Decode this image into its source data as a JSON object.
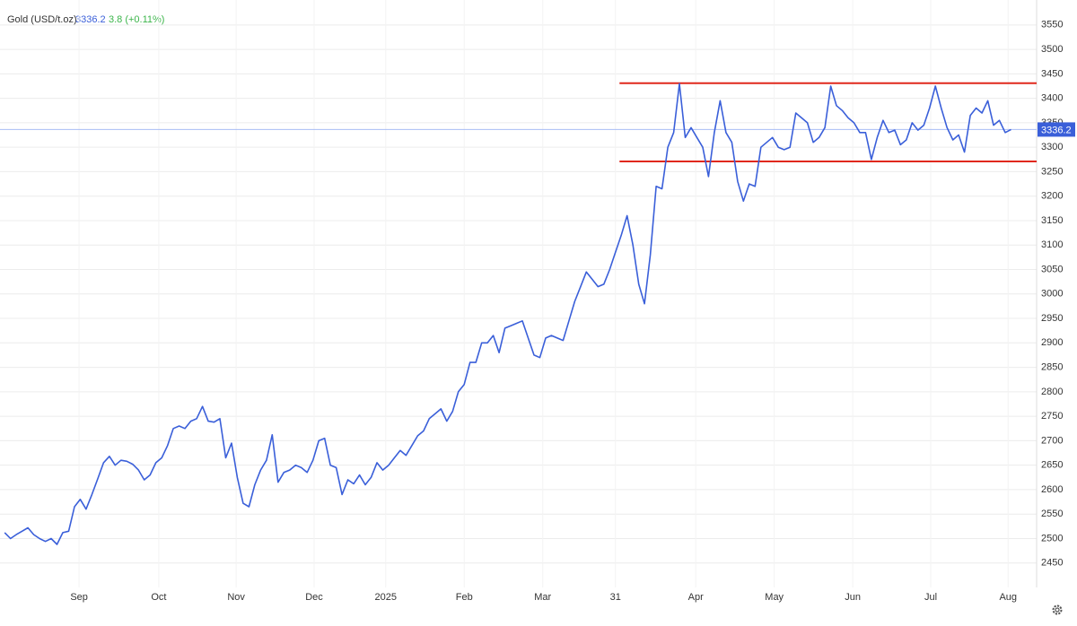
{
  "chart_data": {
    "type": "line",
    "title": "Gold (USD/t.oz)",
    "change": "3.8 (+0.11%)",
    "color": "#3a5fd9",
    "change_color": "#3bb54a",
    "level_color": "#e0281c",
    "ylim": [
      2400,
      3601
    ],
    "xlim": [
      -0.8,
      177.4
    ],
    "yticks": [
      2450,
      2500,
      2550,
      2600,
      2650,
      2700,
      2750,
      2800,
      2850,
      2900,
      2950,
      3000,
      3050,
      3100,
      3150,
      3200,
      3250,
      3300,
      3350,
      3400,
      3450,
      3500,
      3550
    ],
    "xticks": [
      {
        "value": 12.8,
        "label": "Sep"
      },
      {
        "value": 26.5,
        "label": "Oct"
      },
      {
        "value": 39.8,
        "label": "Nov"
      },
      {
        "value": 53.2,
        "label": "Dec"
      },
      {
        "value": 65.5,
        "label": "2025"
      },
      {
        "value": 79,
        "label": "Feb"
      },
      {
        "value": 92.5,
        "label": "Mar"
      },
      {
        "value": 105,
        "label": "31"
      },
      {
        "value": 118.8,
        "label": "Apr"
      },
      {
        "value": 132.3,
        "label": "May"
      },
      {
        "value": 145.8,
        "label": "Jun"
      },
      {
        "value": 159.2,
        "label": "Jul"
      },
      {
        "value": 172.5,
        "label": "Aug"
      }
    ],
    "grid": true,
    "levels": [
      {
        "value": 3431,
        "x_start": 105.7
      },
      {
        "value": 3271,
        "x_start": 105.7
      }
    ],
    "values": [
      2512,
      2500,
      2508,
      2515,
      2522,
      2508,
      2500,
      2494,
      2500,
      2488,
      2512,
      2515,
      2565,
      2580,
      2560,
      2590,
      2622,
      2655,
      2668,
      2650,
      2660,
      2658,
      2652,
      2640,
      2620,
      2630,
      2655,
      2665,
      2690,
      2725,
      2730,
      2725,
      2740,
      2745,
      2770,
      2740,
      2738,
      2745,
      2665,
      2695,
      2625,
      2572,
      2565,
      2610,
      2640,
      2660,
      2712,
      2615,
      2635,
      2640,
      2650,
      2645,
      2635,
      2660,
      2700,
      2705,
      2650,
      2645,
      2590,
      2620,
      2612,
      2630,
      2610,
      2625,
      2655,
      2640,
      2650,
      2665,
      2680,
      2670,
      2690,
      2710,
      2720,
      2745,
      2755,
      2765,
      2740,
      2760,
      2800,
      2815,
      2860,
      2860,
      2900,
      2900,
      2915,
      2880,
      2930,
      2935,
      2940,
      2945,
      2910,
      2875,
      2870,
      2910,
      2915,
      2910,
      2905,
      2945,
      2985,
      3015,
      3045,
      3030,
      3015,
      3020,
      3050,
      3085,
      3120,
      3160,
      3100,
      3020,
      2980,
      3080,
      3220,
      3215,
      3300,
      3330,
      3430,
      3320,
      3340,
      3320,
      3300,
      3240,
      3330,
      3395,
      3330,
      3310,
      3230,
      3190,
      3225,
      3220,
      3300,
      3310,
      3320,
      3300,
      3295,
      3300,
      3370,
      3360,
      3350,
      3310,
      3320,
      3340,
      3425,
      3385,
      3375,
      3360,
      3350,
      3330,
      3330,
      3275,
      3320,
      3355,
      3330,
      3335,
      3305,
      3315,
      3350,
      3335,
      3345,
      3380,
      3425,
      3380,
      3340,
      3315,
      3325,
      3290,
      3365,
      3380,
      3370,
      3395,
      3345,
      3355,
      3330,
      3336.2
    ]
  }
}
